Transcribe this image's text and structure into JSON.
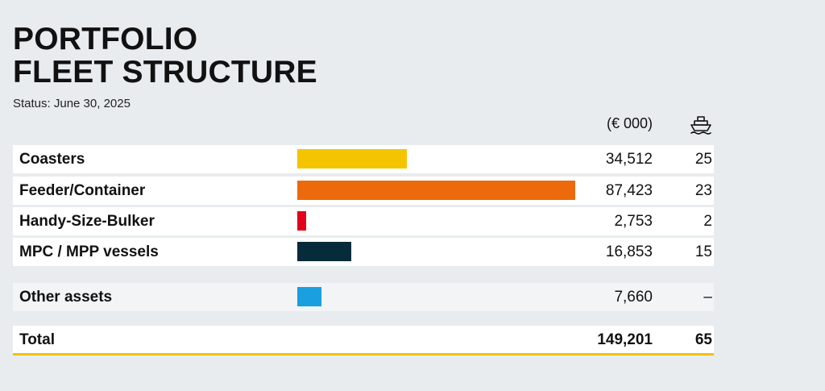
{
  "header": {
    "title_line1": "PORTFOLIO",
    "title_line2": "FLEET STRUCTURE",
    "status": "Status: June 30, 2025",
    "unit_label": "(€ 000)",
    "count_icon": "ship-icon"
  },
  "chart_data": {
    "type": "bar",
    "orientation": "horizontal",
    "categories": [
      "Coasters",
      "Feeder/Container",
      "Handy-Size-Bulker",
      "MPC / MPP vessels",
      "Other assets"
    ],
    "values": [
      34512,
      87423,
      2753,
      16853,
      7660
    ],
    "values_text": [
      "34,512",
      "87,423",
      "2,753",
      "16,853",
      "7,660"
    ],
    "counts_text": [
      "25",
      "23",
      "2",
      "15",
      "–"
    ],
    "colors": [
      "#f5c400",
      "#ec6a0c",
      "#e2001a",
      "#062b3a",
      "#1a9fe0"
    ],
    "xlim": [
      0,
      87423
    ],
    "total": {
      "label": "Total",
      "value_text": "149,201",
      "count_text": "65"
    }
  }
}
